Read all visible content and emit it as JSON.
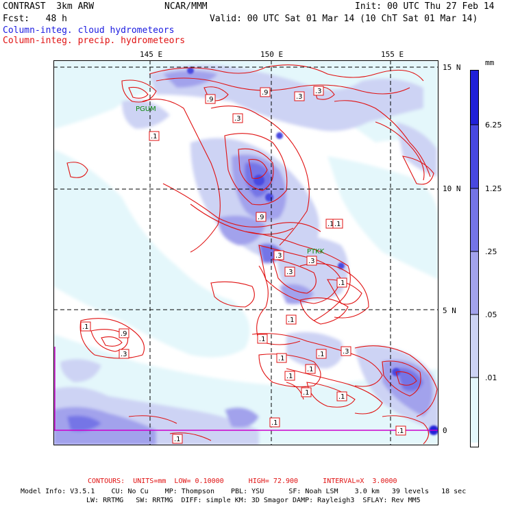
{
  "header": {
    "model_name": "CONTRAST  3km ARW",
    "org": "NCAR/MMM",
    "init": "Init: 00 UTC Thu 27 Feb 14",
    "fcst": "Fcst:   48 h",
    "valid": "Valid: 00 UTC Sat 01 Mar 14 (10 ChT Sat 01 Mar 14)",
    "field_cloud": "Column-integ. cloud hydrometeors",
    "field_precip": "Column-integ. precip. hydrometeors"
  },
  "axes": {
    "lon_labels": [
      "145 E",
      "150 E",
      "155 E"
    ],
    "lat_labels": [
      "15 N",
      "10 N",
      "5 N",
      "0"
    ]
  },
  "stations": [
    "PGUM",
    "PTKK"
  ],
  "contour_labels": [
    ".1",
    ".3",
    ".9",
    ".3",
    ".9",
    ".3",
    ".1",
    ".9",
    ".1",
    ".3",
    ".3",
    ".3",
    ".1",
    ".1",
    ".1",
    ".9",
    ".3",
    ".1",
    ".1",
    ".1",
    ".3",
    ".1",
    ".1",
    ".1",
    ".1",
    ".1",
    ".1",
    ".1"
  ],
  "colorbar": {
    "unit": "mm",
    "ticks": [
      "6.25",
      "1.25",
      ".25",
      ".05",
      ".01"
    ],
    "colors": [
      "#2020d8",
      "#4848e0",
      "#7474e6",
      "#a2a2ec",
      "#cdd3f4",
      "#e4f7fb",
      "#ffffff"
    ]
  },
  "footer": {
    "contours": "CONTOURS:  UNITS=mm  LOW= 0.10000      HIGH= 72.900      INTERVAL=X  3.0000",
    "model_info_1": "Model Info: V3.5.1    CU: No Cu    MP: Thompson    PBL: YSU      SF: Noah LSM    3.0 km   39 levels   18 sec",
    "model_info_2": "LW: RRTMG   SW: RRTMG  DIFF: simple KM: 3D Smagor DAMP: Rayleigh3  SFLAY: Rev MM5"
  }
}
